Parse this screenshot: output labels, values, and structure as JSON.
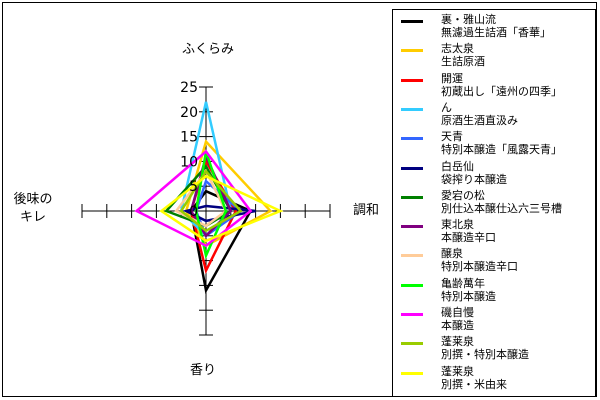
{
  "chart_data": {
    "type": "radar",
    "title": "",
    "axes": [
      "ふくらみ",
      "調和",
      "香り",
      "後味のキレ"
    ],
    "axis_label_lines": {
      "fukurami": [
        "ふくらみ"
      ],
      "chowa": [
        "調和"
      ],
      "kaori": [
        "香り"
      ],
      "kire": [
        "後味の",
        "キレ"
      ]
    },
    "rlim": [
      0,
      25
    ],
    "r_ticks": [
      0,
      5,
      10,
      15,
      20,
      25
    ],
    "r_tick_labels": [
      "0",
      "5",
      "10",
      "15",
      "20",
      "25"
    ],
    "grid": false,
    "legend_position": "right",
    "series": [
      {
        "name": "裏・雅山流",
        "desc": "無濾過生詰酒「香華」",
        "color": "#000000",
        "values": [
          4,
          9,
          16,
          3
        ]
      },
      {
        "name": "志太泉",
        "desc": "生詰原酒",
        "color": "#ffcc00",
        "values": [
          14,
          13,
          7,
          4
        ]
      },
      {
        "name": "開運",
        "desc": "初蔵出し「遠州の四季」",
        "color": "#ff0000",
        "values": [
          10,
          6,
          12,
          3
        ]
      },
      {
        "name": "ん",
        "desc": "原酒生酒直汲み",
        "color": "#33ccff",
        "values": [
          22,
          5,
          5,
          5
        ]
      },
      {
        "name": "天青",
        "desc": "特別本醸造「風露天青」",
        "color": "#3366ff",
        "values": [
          6,
          7,
          5,
          2
        ]
      },
      {
        "name": "白岳仙",
        "desc": "袋搾り本醸造",
        "color": "#000080",
        "values": [
          1,
          10,
          2,
          4
        ]
      },
      {
        "name": "愛宕の松",
        "desc": "別仕込本醸仕込六三号槽",
        "color": "#008000",
        "values": [
          9,
          5,
          3,
          8
        ]
      },
      {
        "name": "東北泉",
        "desc": "本醸造辛口",
        "color": "#800080",
        "values": [
          11,
          5,
          5,
          3
        ]
      },
      {
        "name": "醸泉",
        "desc": "特別本醸造辛口",
        "color": "#ffcc99",
        "values": [
          8,
          4,
          3,
          6
        ]
      },
      {
        "name": "亀齢萬年",
        "desc": "特別本醸造",
        "color": "#00ff00",
        "values": [
          12,
          4,
          9,
          2
        ]
      },
      {
        "name": "磯自慢",
        "desc": "本醸造",
        "color": "#ff00ff",
        "values": [
          12,
          9,
          7,
          14
        ]
      },
      {
        "name": "蓬莱泉",
        "desc": "別撰・特別本醸造",
        "color": "#99cc00",
        "values": [
          8,
          7,
          4,
          5
        ]
      },
      {
        "name": "蓬莱泉",
        "desc": "別撰・米由来",
        "color": "#ffff00",
        "values": [
          7,
          15,
          6,
          9
        ]
      }
    ]
  }
}
